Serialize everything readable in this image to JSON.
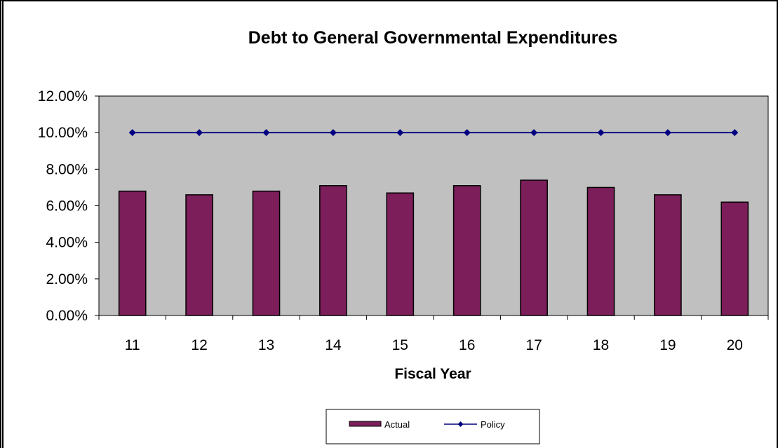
{
  "chart_data": {
    "type": "bar",
    "title": "Debt to General Governmental Expenditures",
    "xlabel": "Fiscal Year",
    "ylabel": "",
    "categories": [
      "11",
      "12",
      "13",
      "14",
      "15",
      "16",
      "17",
      "18",
      "19",
      "20"
    ],
    "ylim": [
      0,
      0.12
    ],
    "yticks": [
      "0.00%",
      "2.00%",
      "4.00%",
      "6.00%",
      "8.00%",
      "10.00%",
      "12.00%"
    ],
    "series": [
      {
        "name": "Actual",
        "type": "bar",
        "color": "#7b1e5a",
        "values": [
          0.068,
          0.066,
          0.068,
          0.071,
          0.067,
          0.071,
          0.074,
          0.07,
          0.066,
          0.062
        ]
      },
      {
        "name": "Policy",
        "type": "line",
        "color": "#000080",
        "values": [
          0.1,
          0.1,
          0.1,
          0.1,
          0.1,
          0.1,
          0.1,
          0.1,
          0.1,
          0.1
        ]
      }
    ],
    "grid": false,
    "plot_background": "#c0c0c0",
    "legend": "bottom"
  }
}
